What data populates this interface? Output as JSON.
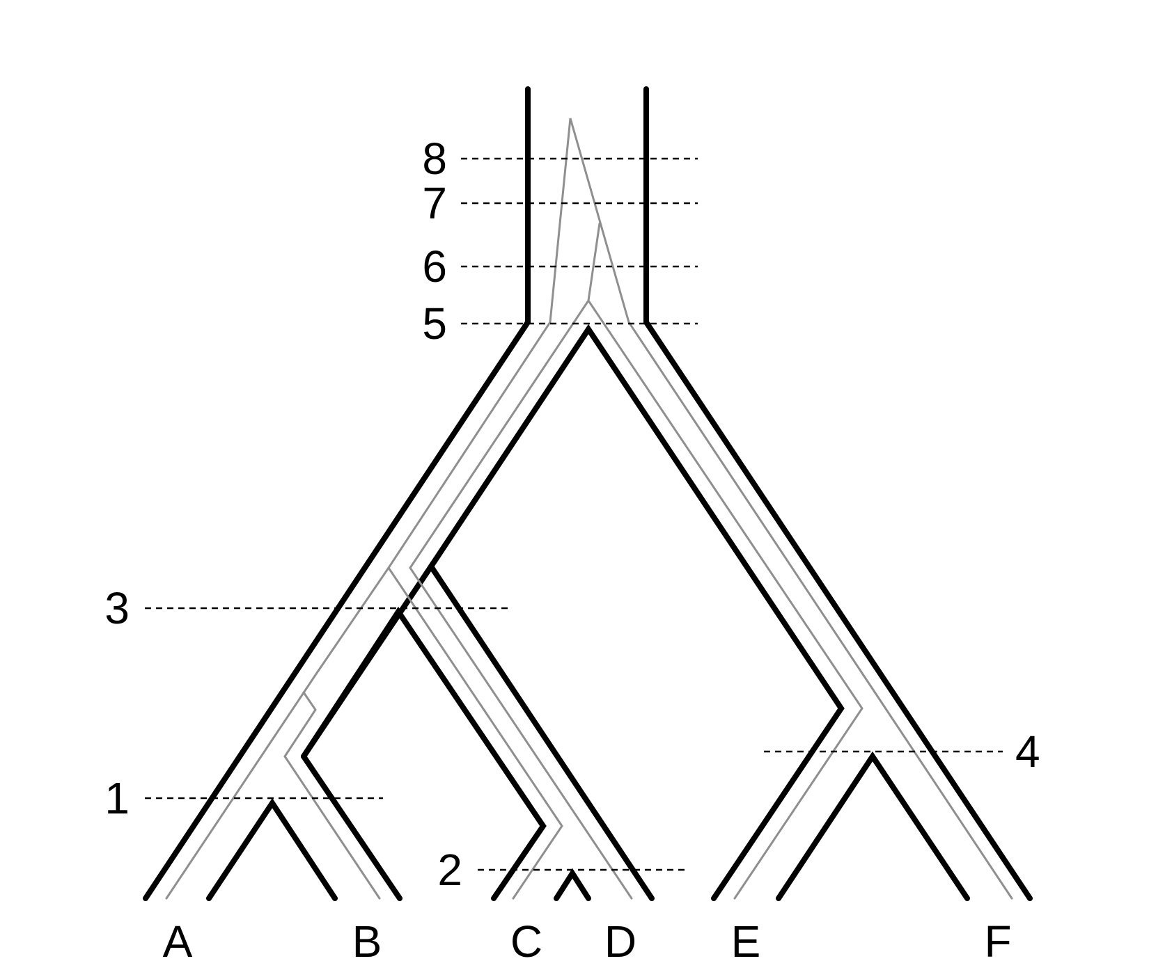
{
  "diagram": {
    "taxa": [
      {
        "label": "A"
      },
      {
        "label": "B"
      },
      {
        "label": "C"
      },
      {
        "label": "D"
      },
      {
        "label": "E"
      },
      {
        "label": "F"
      }
    ],
    "time_levels": [
      {
        "label": "1"
      },
      {
        "label": "2"
      },
      {
        "label": "3"
      },
      {
        "label": "4"
      },
      {
        "label": "5"
      },
      {
        "label": "6"
      },
      {
        "label": "7"
      },
      {
        "label": "8"
      }
    ],
    "colors": {
      "species_tree": "#000000",
      "gene_tree": "#8f8f8f",
      "time_line": "#000000"
    }
  }
}
